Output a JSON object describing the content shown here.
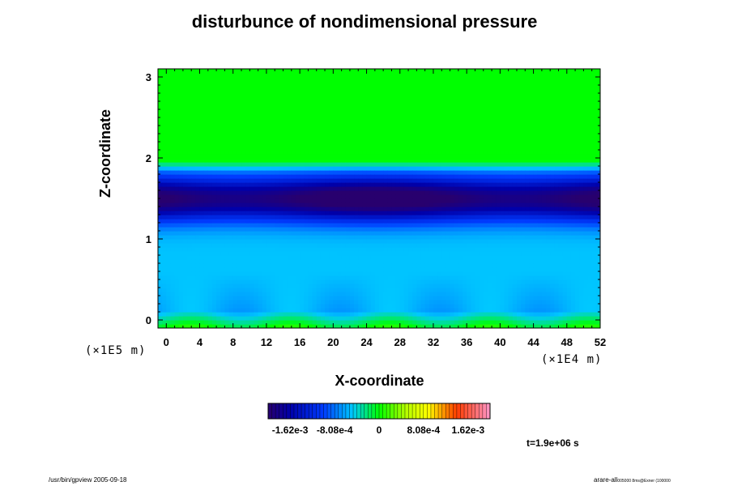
{
  "chart_data": {
    "type": "heatmap",
    "title": "disturbunce of nondimensional pressure",
    "xlabel": "X-coordinate",
    "ylabel": "Z-coordinate",
    "x_unit": "(×1E4 m)",
    "y_unit": "(×1E5 m)",
    "xlim": [
      -1,
      52
    ],
    "ylim": [
      -0.1,
      3.1
    ],
    "x_ticks": [
      "0",
      "4",
      "8",
      "12",
      "16",
      "20",
      "24",
      "28",
      "32",
      "36",
      "40",
      "44",
      "48",
      "52"
    ],
    "y_ticks": [
      "0",
      "1",
      "2",
      "3"
    ],
    "colorbar": {
      "range": [
        -0.00202,
        0.00202
      ],
      "tick_labels": [
        "-1.62e-3",
        "-8.08e-4",
        "0",
        "8.08e-4",
        "1.62e-3"
      ],
      "tick_values": [
        -0.00162,
        -0.000808,
        0,
        0.000808,
        0.00162
      ]
    },
    "field_description": {
      "upper_layer": {
        "z_range": [
          1.95,
          3.1
        ],
        "value": 0.0
      },
      "transition": {
        "z": 1.9,
        "value": -0.0005
      },
      "minimum_band": {
        "z": 1.5,
        "value": -0.00155
      },
      "near_surface": {
        "z_range": [
          0,
          0.5
        ],
        "value": -0.0006
      }
    },
    "time_label": "t=1.9e+06 s"
  },
  "footer": {
    "left": "/usr/bin/gpview 2005-09-18",
    "right_main": "arare-all",
    "right_sub": "005000 8ms@Exner (100000"
  }
}
